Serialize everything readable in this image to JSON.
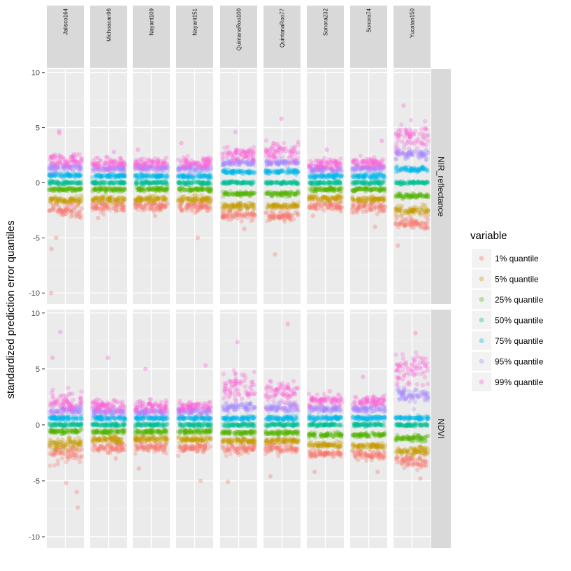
{
  "chart_data": {
    "type": "scatter",
    "subtype": "faceted-jitter",
    "ylabel": "standardized prediction error quantiles",
    "xlabel": "",
    "ylim": [
      -11,
      10.3
    ],
    "yticks": [
      -10,
      -5,
      0,
      5,
      10
    ],
    "ytick_labels": [
      "-10",
      "-5",
      "0",
      "5",
      "10"
    ],
    "legend": {
      "title": "variable",
      "position": "right",
      "entries": [
        {
          "label": "1% quantile",
          "color": "#F8766D"
        },
        {
          "label": "5% quantile",
          "color": "#C49A00"
        },
        {
          "label": "25% quantile",
          "color": "#53B400"
        },
        {
          "label": "50% quantile",
          "color": "#00C094"
        },
        {
          "label": "75% quantile",
          "color": "#00B6EB"
        },
        {
          "label": "95% quantile",
          "color": "#A58AFF"
        },
        {
          "label": "99% quantile",
          "color": "#FB61D7"
        }
      ]
    },
    "columns": [
      "Jalisco164",
      "Michoacan96",
      "Nayarit109",
      "Nayarit151",
      "QuintanaRoo100",
      "QuintanaRoo77",
      "Sonora232",
      "Sonora74",
      "Yucatan150"
    ],
    "rows": [
      "NIR_reflectance",
      "NDVI"
    ],
    "series_order": [
      "1% quantile",
      "5% quantile",
      "25% quantile",
      "50% quantile",
      "75% quantile",
      "95% quantile",
      "99% quantile"
    ],
    "panels": {
      "NIR_reflectance": {
        "Jalisco164": {
          "centers": [
            -2.4,
            -1.6,
            -0.6,
            0.0,
            0.7,
            1.4,
            2.0
          ],
          "spread": [
            0.9,
            0.35,
            0.2,
            0.15,
            0.2,
            0.35,
            0.7
          ],
          "outliers": [
            -10.0,
            -6.0,
            -5.0,
            4.7,
            4.5
          ]
        },
        "Michoacan96": {
          "centers": [
            -2.2,
            -1.5,
            -0.6,
            0.0,
            0.6,
            1.3,
            1.8
          ],
          "spread": [
            0.5,
            0.3,
            0.2,
            0.15,
            0.2,
            0.3,
            0.5
          ],
          "outliers": [
            -3.2,
            2.8
          ]
        },
        "Nayarit109": {
          "centers": [
            -2.2,
            -1.5,
            -0.6,
            0.0,
            0.6,
            1.3,
            1.8
          ],
          "spread": [
            0.5,
            0.3,
            0.2,
            0.15,
            0.2,
            0.3,
            0.5
          ],
          "outliers": [
            -3.0,
            3.0
          ]
        },
        "Nayarit151": {
          "centers": [
            -2.2,
            -1.5,
            -0.6,
            0.0,
            0.6,
            1.3,
            1.8
          ],
          "spread": [
            0.55,
            0.3,
            0.2,
            0.15,
            0.2,
            0.3,
            0.6
          ],
          "outliers": [
            -5.0,
            3.6
          ]
        },
        "QuintanaRoo100": {
          "centers": [
            -3.0,
            -2.1,
            -1.0,
            0.0,
            1.0,
            1.8,
            2.6
          ],
          "spread": [
            0.5,
            0.3,
            0.2,
            0.15,
            0.2,
            0.3,
            0.8
          ],
          "outliers": [
            -4.2,
            4.6
          ]
        },
        "QuintanaRoo77": {
          "centers": [
            -3.0,
            -2.1,
            -1.0,
            0.0,
            1.0,
            1.8,
            2.8
          ],
          "spread": [
            0.5,
            0.3,
            0.2,
            0.15,
            0.2,
            0.3,
            1.0
          ],
          "outliers": [
            -6.5,
            5.8
          ]
        },
        "Sonora232": {
          "centers": [
            -2.1,
            -1.4,
            -0.6,
            0.0,
            0.6,
            1.2,
            1.7
          ],
          "spread": [
            0.5,
            0.3,
            0.2,
            0.15,
            0.2,
            0.3,
            0.5
          ],
          "outliers": [
            -3.0,
            3.0
          ]
        },
        "Sonora74": {
          "centers": [
            -2.2,
            -1.5,
            -0.6,
            0.0,
            0.6,
            1.3,
            1.8
          ],
          "spread": [
            0.6,
            0.3,
            0.2,
            0.15,
            0.2,
            0.3,
            0.5
          ],
          "outliers": [
            -4.0,
            3.8
          ]
        },
        "Yucatan150": {
          "centers": [
            -3.7,
            -2.5,
            -1.2,
            0.0,
            1.2,
            2.6,
            4.2
          ],
          "spread": [
            0.7,
            0.4,
            0.25,
            0.15,
            0.25,
            0.5,
            1.3
          ],
          "outliers": [
            -5.7,
            7.0
          ]
        }
      },
      "NDVI": {
        "Jalisco164": {
          "centers": [
            -2.5,
            -1.7,
            -0.6,
            0.0,
            0.6,
            1.3,
            2.1
          ],
          "spread": [
            1.0,
            0.6,
            0.2,
            0.15,
            0.2,
            0.4,
            1.0
          ],
          "outliers": [
            -7.4,
            -6.0,
            -5.2,
            8.3,
            6.0
          ]
        },
        "Michoacan96": {
          "centers": [
            -2.0,
            -1.3,
            -0.6,
            0.0,
            0.6,
            1.2,
            1.7
          ],
          "spread": [
            0.5,
            0.3,
            0.2,
            0.15,
            0.2,
            0.35,
            0.6
          ],
          "outliers": [
            -3.0,
            6.0
          ]
        },
        "Nayarit109": {
          "centers": [
            -2.0,
            -1.3,
            -0.6,
            0.0,
            0.6,
            1.2,
            1.6
          ],
          "spread": [
            0.5,
            0.3,
            0.2,
            0.15,
            0.2,
            0.35,
            0.6
          ],
          "outliers": [
            -3.9,
            5.0
          ]
        },
        "Nayarit151": {
          "centers": [
            -2.0,
            -1.3,
            -0.6,
            0.0,
            0.6,
            1.2,
            1.6
          ],
          "spread": [
            0.5,
            0.3,
            0.2,
            0.15,
            0.2,
            0.35,
            0.6
          ],
          "outliers": [
            -5.0,
            5.3
          ]
        },
        "QuintanaRoo100": {
          "centers": [
            -2.1,
            -1.4,
            -0.7,
            0.0,
            0.6,
            1.6,
            3.4
          ],
          "spread": [
            0.5,
            0.3,
            0.2,
            0.15,
            0.2,
            0.4,
            1.4
          ],
          "outliers": [
            -5.1,
            7.4
          ]
        },
        "QuintanaRoo77": {
          "centers": [
            -2.1,
            -1.4,
            -0.7,
            0.0,
            0.6,
            1.5,
            2.8
          ],
          "spread": [
            0.5,
            0.3,
            0.2,
            0.15,
            0.2,
            0.4,
            1.3
          ],
          "outliers": [
            -4.6,
            9.0
          ]
        },
        "Sonora232": {
          "centers": [
            -2.6,
            -1.8,
            -0.9,
            0.0,
            0.6,
            1.4,
            2.2
          ],
          "spread": [
            0.4,
            0.3,
            0.2,
            0.15,
            0.2,
            0.3,
            0.5
          ],
          "outliers": [
            -4.2,
            3.0
          ]
        },
        "Sonora74": {
          "centers": [
            -2.7,
            -1.9,
            -0.9,
            0.0,
            0.6,
            1.4,
            2.1
          ],
          "spread": [
            0.4,
            0.3,
            0.2,
            0.15,
            0.2,
            0.3,
            0.5
          ],
          "outliers": [
            -4.2,
            4.3
          ]
        },
        "Yucatan150": {
          "centers": [
            -3.2,
            -2.3,
            -1.2,
            0.0,
            0.6,
            2.7,
            5.0
          ],
          "spread": [
            0.7,
            0.4,
            0.25,
            0.15,
            0.2,
            0.6,
            1.5
          ],
          "outliers": [
            -4.8,
            8.2
          ]
        }
      }
    }
  }
}
